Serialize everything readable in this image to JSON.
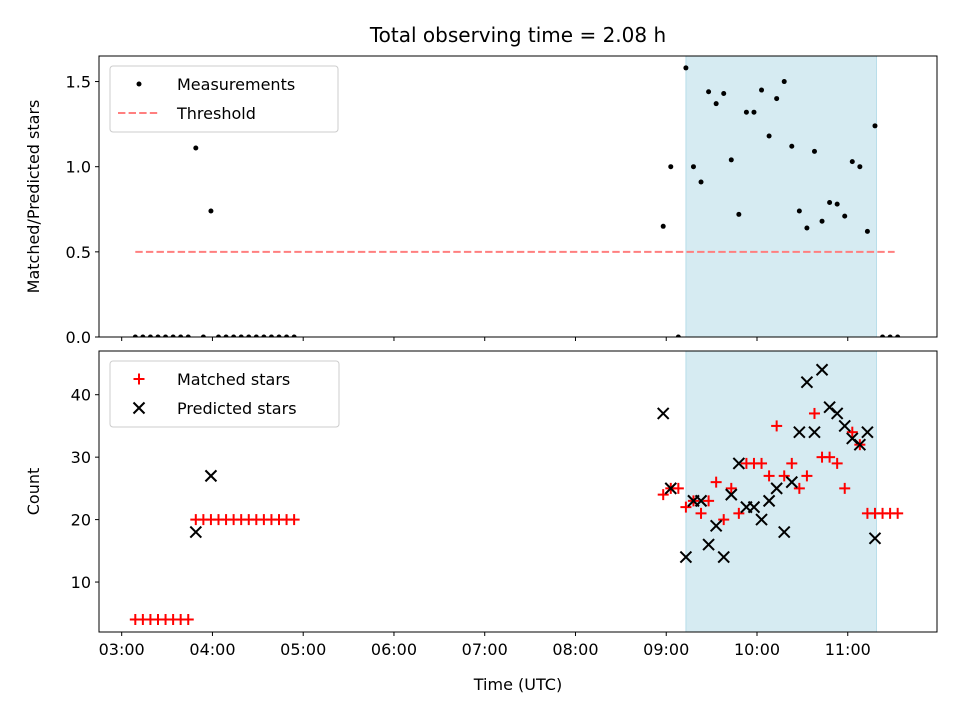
{
  "chart_data": {
    "type": "scatter",
    "title": "Total observing time = 2.08 h",
    "xlabel": "Time (UTC)",
    "x_ticks": [
      "03:00",
      "04:00",
      "05:00",
      "06:00",
      "07:00",
      "08:00",
      "09:00",
      "10:00",
      "11:00"
    ],
    "xlim": [
      "02:45",
      "11:59"
    ],
    "highlight_span": [
      "09:13",
      "11:19"
    ],
    "colors": {
      "measurements": "#000000",
      "threshold": "#ff7f7f",
      "matched": "#ff0000",
      "predicted": "#000000",
      "shade": "#add8e6"
    },
    "panels": [
      {
        "id": "ratio",
        "ylabel": "Matched/Predicted stars",
        "ylim": [
          0,
          1.65
        ],
        "y_ticks": [
          0.0,
          0.5,
          1.0,
          1.5
        ],
        "y_tick_labels": [
          "0.0",
          "0.5",
          "1.0",
          "1.5"
        ],
        "legend": {
          "position": "upper-left",
          "entries": [
            {
              "label": "Measurements",
              "marker": "dot"
            },
            {
              "label": "Threshold",
              "marker": "dashed-line"
            }
          ]
        },
        "threshold": {
          "value": 0.5,
          "x_start": "03:09",
          "x_end": "11:31"
        },
        "measurements": [
          [
            "03:09",
            0
          ],
          [
            "03:14",
            0
          ],
          [
            "03:19",
            0
          ],
          [
            "03:24",
            0
          ],
          [
            "03:29",
            0
          ],
          [
            "03:34",
            0
          ],
          [
            "03:39",
            0
          ],
          [
            "03:44",
            0
          ],
          [
            "03:49",
            1.11
          ],
          [
            "03:54",
            0
          ],
          [
            "03:59",
            0.74
          ],
          [
            "04:04",
            0
          ],
          [
            "04:09",
            0
          ],
          [
            "04:14",
            0
          ],
          [
            "04:19",
            0
          ],
          [
            "04:24",
            0
          ],
          [
            "04:29",
            0
          ],
          [
            "04:34",
            0
          ],
          [
            "04:39",
            0
          ],
          [
            "04:44",
            0
          ],
          [
            "04:49",
            0
          ],
          [
            "04:54",
            0
          ],
          [
            "08:58",
            0.65
          ],
          [
            "09:03",
            1.0
          ],
          [
            "09:08",
            0
          ],
          [
            "09:13",
            1.58
          ],
          [
            "09:18",
            1.0
          ],
          [
            "09:23",
            0.91
          ],
          [
            "09:28",
            1.44
          ],
          [
            "09:33",
            1.37
          ],
          [
            "09:38",
            1.43
          ],
          [
            "09:43",
            1.04
          ],
          [
            "09:48",
            0.72
          ],
          [
            "09:53",
            1.32
          ],
          [
            "09:58",
            1.32
          ],
          [
            "10:03",
            1.45
          ],
          [
            "10:08",
            1.18
          ],
          [
            "10:13",
            1.4
          ],
          [
            "10:18",
            1.5
          ],
          [
            "10:23",
            1.12
          ],
          [
            "10:28",
            0.74
          ],
          [
            "10:33",
            0.64
          ],
          [
            "10:38",
            1.09
          ],
          [
            "10:43",
            0.68
          ],
          [
            "10:48",
            0.79
          ],
          [
            "10:53",
            0.78
          ],
          [
            "10:58",
            0.71
          ],
          [
            "11:03",
            1.03
          ],
          [
            "11:08",
            1.0
          ],
          [
            "11:13",
            0.62
          ],
          [
            "11:18",
            1.24
          ],
          [
            "11:23",
            0
          ],
          [
            "11:28",
            0
          ],
          [
            "11:33",
            0
          ]
        ]
      },
      {
        "id": "counts",
        "ylabel": "Count",
        "ylim": [
          2,
          47
        ],
        "y_ticks": [
          10,
          20,
          30,
          40
        ],
        "y_tick_labels": [
          "10",
          "20",
          "30",
          "40"
        ],
        "legend": {
          "position": "upper-left",
          "entries": [
            {
              "label": "Matched stars",
              "marker": "plus"
            },
            {
              "label": "Predicted stars",
              "marker": "x"
            }
          ]
        },
        "matched": [
          [
            "03:09",
            4
          ],
          [
            "03:14",
            4
          ],
          [
            "03:19",
            4
          ],
          [
            "03:24",
            4
          ],
          [
            "03:29",
            4
          ],
          [
            "03:34",
            4
          ],
          [
            "03:39",
            4
          ],
          [
            "03:44",
            4
          ],
          [
            "03:49",
            20
          ],
          [
            "03:54",
            20
          ],
          [
            "03:59",
            20
          ],
          [
            "04:04",
            20
          ],
          [
            "04:09",
            20
          ],
          [
            "04:14",
            20
          ],
          [
            "04:19",
            20
          ],
          [
            "04:24",
            20
          ],
          [
            "04:29",
            20
          ],
          [
            "04:34",
            20
          ],
          [
            "04:39",
            20
          ],
          [
            "04:44",
            20
          ],
          [
            "04:49",
            20
          ],
          [
            "04:54",
            20
          ],
          [
            "08:58",
            24
          ],
          [
            "09:03",
            25
          ],
          [
            "09:08",
            25
          ],
          [
            "09:13",
            22
          ],
          [
            "09:18",
            23
          ],
          [
            "09:23",
            21
          ],
          [
            "09:28",
            23
          ],
          [
            "09:33",
            26
          ],
          [
            "09:38",
            20
          ],
          [
            "09:43",
            25
          ],
          [
            "09:48",
            21
          ],
          [
            "09:53",
            29
          ],
          [
            "09:58",
            29
          ],
          [
            "10:03",
            29
          ],
          [
            "10:08",
            27
          ],
          [
            "10:13",
            35
          ],
          [
            "10:18",
            27
          ],
          [
            "10:23",
            29
          ],
          [
            "10:28",
            25
          ],
          [
            "10:33",
            27
          ],
          [
            "10:38",
            37
          ],
          [
            "10:43",
            30
          ],
          [
            "10:48",
            30
          ],
          [
            "10:53",
            29
          ],
          [
            "10:58",
            25
          ],
          [
            "11:03",
            34
          ],
          [
            "11:08",
            32
          ],
          [
            "11:13",
            21
          ],
          [
            "11:18",
            21
          ],
          [
            "11:23",
            21
          ],
          [
            "11:28",
            21
          ],
          [
            "11:33",
            21
          ]
        ],
        "predicted": [
          [
            "03:49",
            18
          ],
          [
            "03:59",
            27
          ],
          [
            "08:58",
            37
          ],
          [
            "09:03",
            25
          ],
          [
            "09:13",
            14
          ],
          [
            "09:18",
            23
          ],
          [
            "09:23",
            23
          ],
          [
            "09:28",
            16
          ],
          [
            "09:33",
            19
          ],
          [
            "09:38",
            14
          ],
          [
            "09:43",
            24
          ],
          [
            "09:48",
            29
          ],
          [
            "09:53",
            22
          ],
          [
            "09:58",
            22
          ],
          [
            "10:03",
            20
          ],
          [
            "10:08",
            23
          ],
          [
            "10:13",
            25
          ],
          [
            "10:18",
            18
          ],
          [
            "10:23",
            26
          ],
          [
            "10:28",
            34
          ],
          [
            "10:33",
            42
          ],
          [
            "10:38",
            34
          ],
          [
            "10:43",
            44
          ],
          [
            "10:48",
            38
          ],
          [
            "10:53",
            37
          ],
          [
            "10:58",
            35
          ],
          [
            "11:03",
            33
          ],
          [
            "11:08",
            32
          ],
          [
            "11:13",
            34
          ],
          [
            "11:18",
            17
          ]
        ]
      }
    ]
  }
}
